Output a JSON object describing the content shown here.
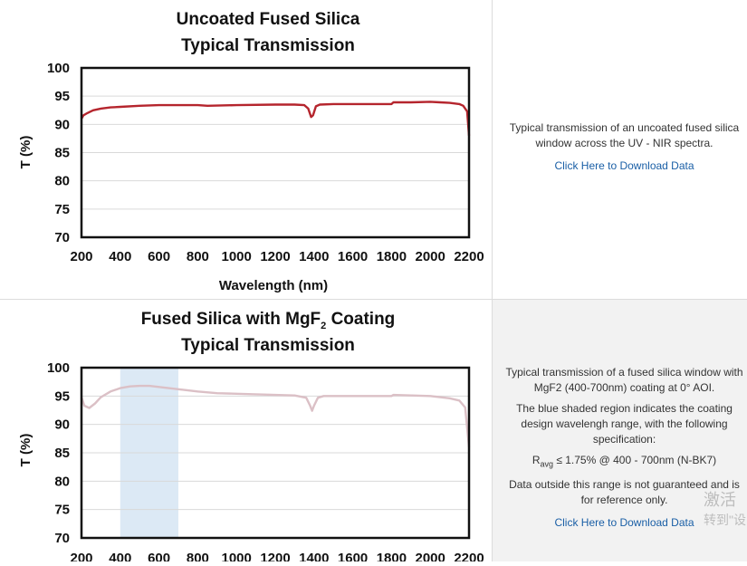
{
  "rows": [
    {
      "description": [
        "Typical transmission of an uncoated fused silica window across the UV - NIR spectra."
      ],
      "download_label": "Click Here to Download Data"
    },
    {
      "description": [
        "Typical transmission of a fused silica window with MgF2 (400-700nm) coating at 0° AOI.",
        "The blue shaded region indicates the coating design wavelengh range, with the following specification:"
      ],
      "spec_prefix": "R",
      "spec_sub": "avg",
      "spec_suffix": " ≤ 1.75% @ 400 - 700nm (N-BK7)",
      "note": "Data outside this range is not guaranteed and is for reference only.",
      "download_label": "Click Here to Download Data"
    }
  ],
  "watermark": {
    "line1": "激活",
    "line2": "转到\"设"
  },
  "chart_data": [
    {
      "type": "line",
      "title_lines": [
        "Uncoated Fused Silica",
        "Typical Transmission"
      ],
      "xlabel": "Wavelength (nm)",
      "ylabel": "T (%)",
      "xlim": [
        200,
        2200
      ],
      "ylim": [
        70,
        100
      ],
      "x_ticks": [
        200,
        400,
        600,
        800,
        1000,
        1200,
        1400,
        1600,
        1800,
        2000,
        2200
      ],
      "y_ticks": [
        70,
        75,
        80,
        85,
        90,
        95,
        100
      ],
      "grid": true,
      "series": [
        {
          "color": "#b5252d",
          "x": [
            200,
            210,
            230,
            260,
            300,
            350,
            400,
            500,
            600,
            700,
            800,
            850,
            1000,
            1200,
            1300,
            1350,
            1370,
            1385,
            1395,
            1410,
            1430,
            1500,
            1600,
            1700,
            1800,
            1810,
            1900,
            2000,
            2050,
            2100,
            2150,
            2170,
            2190,
            2200
          ],
          "y": [
            91.0,
            91.6,
            92.0,
            92.5,
            92.8,
            93.0,
            93.1,
            93.3,
            93.4,
            93.4,
            93.4,
            93.3,
            93.4,
            93.5,
            93.5,
            93.4,
            92.8,
            91.3,
            91.6,
            93.2,
            93.5,
            93.6,
            93.6,
            93.6,
            93.6,
            93.9,
            93.9,
            94.0,
            93.9,
            93.8,
            93.6,
            93.3,
            92.3,
            88.0
          ]
        }
      ]
    },
    {
      "type": "line",
      "title_lines": [
        "Fused Silica with MgF",
        "Typical Transmission"
      ],
      "title_subscript": "2",
      "title_after_subscript": " Coating",
      "xlabel": "",
      "ylabel": "T (%)",
      "xlim": [
        200,
        2200
      ],
      "ylim": [
        70,
        100
      ],
      "x_ticks": [
        200,
        400,
        600,
        800,
        1000,
        1200,
        1400,
        1600,
        1800,
        2000,
        2200
      ],
      "y_ticks": [
        70,
        75,
        80,
        85,
        90,
        95,
        100
      ],
      "grid": true,
      "shaded_region": {
        "x": [
          400,
          700
        ],
        "color": "#dce9f5"
      },
      "series": [
        {
          "color": "#dbc0c6",
          "x": [
            200,
            215,
            240,
            270,
            300,
            350,
            400,
            450,
            500,
            550,
            600,
            700,
            800,
            900,
            1000,
            1200,
            1300,
            1360,
            1380,
            1390,
            1400,
            1420,
            1450,
            1600,
            1800,
            1810,
            2000,
            2100,
            2150,
            2180,
            2200
          ],
          "y": [
            94.8,
            93.3,
            92.9,
            93.7,
            94.8,
            95.8,
            96.4,
            96.7,
            96.8,
            96.8,
            96.6,
            96.2,
            95.8,
            95.5,
            95.4,
            95.2,
            95.1,
            94.7,
            93.3,
            92.4,
            93.3,
            94.7,
            95.0,
            95.0,
            95.0,
            95.2,
            95.0,
            94.6,
            94.2,
            93.0,
            86.0
          ]
        }
      ]
    }
  ]
}
